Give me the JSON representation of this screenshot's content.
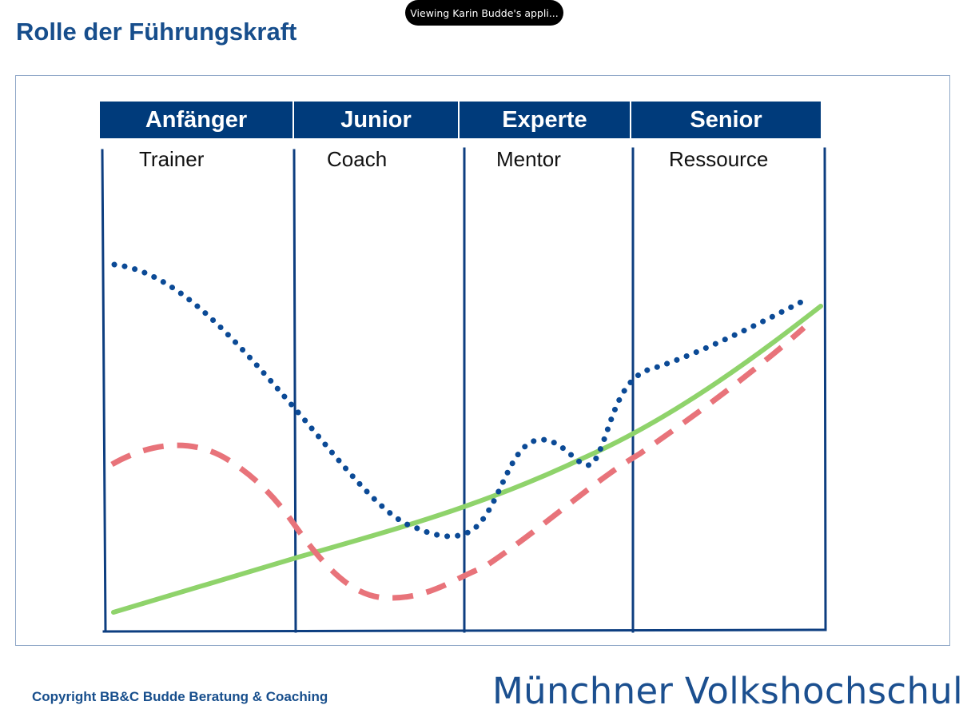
{
  "share_banner": {
    "text": "Viewing Karin Budde's appli..."
  },
  "slide": {
    "title": "Rolle der Führungskraft",
    "stages": [
      {
        "name": "Anfänger",
        "role": "Trainer"
      },
      {
        "name": "Junior",
        "role": "Coach"
      },
      {
        "name": "Experte",
        "role": "Mentor"
      },
      {
        "name": "Senior",
        "role": "Ressource"
      }
    ],
    "footer": {
      "copyright": "Copyright BB&C Budde Beratung & Coaching",
      "brand": "Münchner Volkshochschule"
    }
  },
  "colors": {
    "title": "#174e8c",
    "header_bg": "#003b7b",
    "header_text": "#ffffff",
    "grid_line": "#0d3e80",
    "curve_dotted": "#0b4a96",
    "curve_dashed": "#e8737a",
    "curve_solid": "#8fd36b"
  },
  "curves": [
    {
      "id": "dotted",
      "style": "dotted",
      "color_key": "curve_dotted"
    },
    {
      "id": "dashed",
      "style": "dashed",
      "color_key": "curve_dashed"
    },
    {
      "id": "solid",
      "style": "solid",
      "color_key": "curve_solid"
    }
  ]
}
